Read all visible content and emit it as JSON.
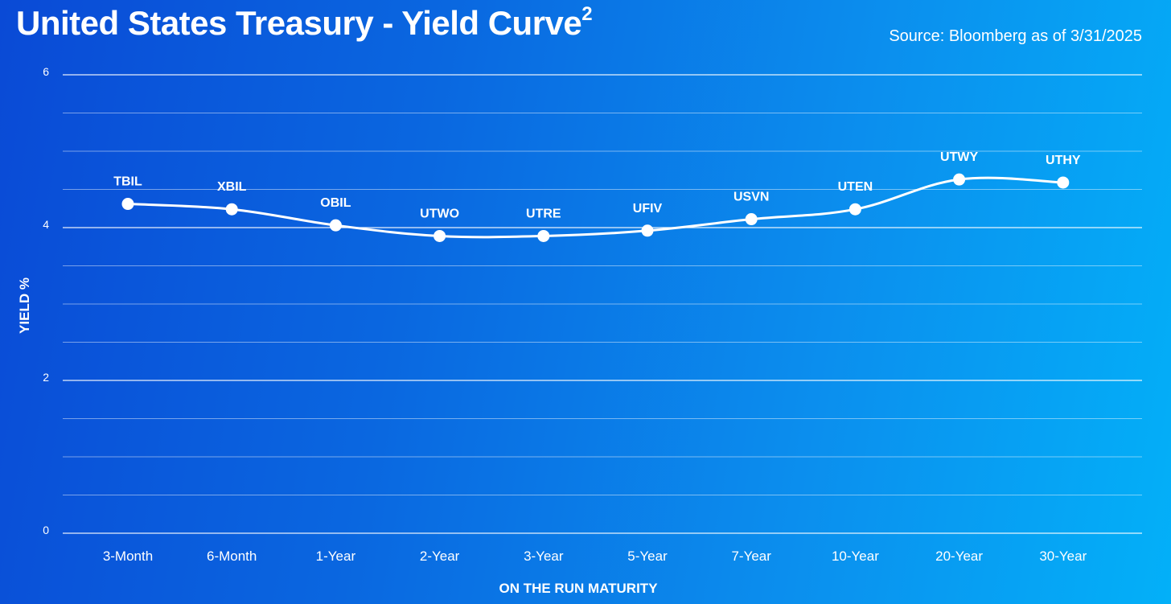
{
  "header": {
    "title": "United States Treasury - Yield Curve",
    "title_superscript": "2",
    "source": "Source: Bloomberg as of 3/31/2025"
  },
  "chart_data": {
    "type": "line",
    "xlabel": "ON THE RUN MATURITY",
    "ylabel": "YIELD %",
    "ylim": [
      0,
      6
    ],
    "yticks": [
      0,
      2,
      4,
      6
    ],
    "grid_step": 0.5,
    "grid": true,
    "categories": [
      "3-Month",
      "6-Month",
      "1-Year",
      "2-Year",
      "3-Year",
      "5-Year",
      "7-Year",
      "10-Year",
      "20-Year",
      "30-Year"
    ],
    "series": [
      {
        "labels": [
          "TBIL",
          "XBIL",
          "OBIL",
          "UTWO",
          "UTRE",
          "UFIV",
          "USVN",
          "UTEN",
          "UTWY",
          "UTHY"
        ],
        "values": [
          4.31,
          4.24,
          4.03,
          3.89,
          3.89,
          3.96,
          4.11,
          4.24,
          4.63,
          4.59
        ]
      }
    ],
    "colors": {
      "line": "#ffffff",
      "marker": "#ffffff",
      "grid": "#ffffff"
    }
  }
}
